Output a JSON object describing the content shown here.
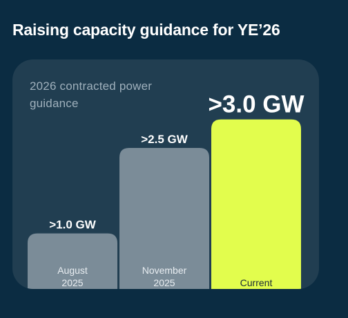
{
  "title": "Raising capacity guidance for YE’26",
  "subtitle": "2026 contracted power guidance",
  "chart_data": {
    "type": "bar",
    "categories": [
      "August 2025",
      "November 2025",
      "Current"
    ],
    "values": [
      1.0,
      2.5,
      3.0
    ],
    "data_labels": [
      ">1.0 GW",
      ">2.5 GW",
      ">3.0 GW"
    ],
    "bar_colors": [
      "#7b8c98",
      "#7b8c98",
      "#e2fd4d"
    ],
    "label_colors": [
      "#e8edf1",
      "#e8edf1",
      "#1b2b36"
    ],
    "ylim": [
      0,
      3.3
    ],
    "grid": false,
    "xlabel": "",
    "ylabel": ""
  }
}
